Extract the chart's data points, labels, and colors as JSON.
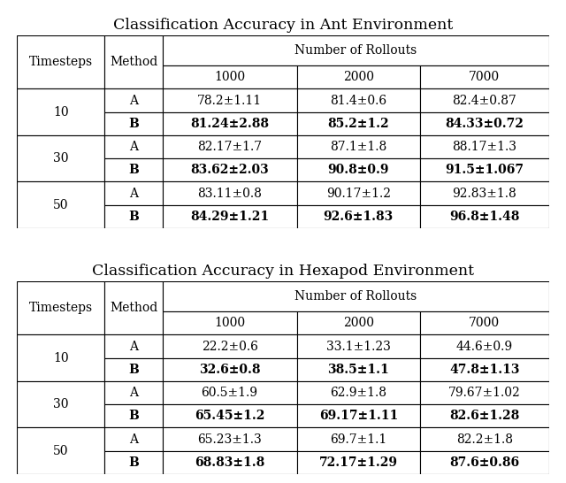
{
  "ant_title": "Classification Accuracy in Ant Environment",
  "hex_title": "Classification Accuracy in Hexapod Environment",
  "col_headers": [
    "1000",
    "2000",
    "7000"
  ],
  "ant_data": [
    [
      "10",
      "A",
      "78.2±1.11",
      "81.4±0.6",
      "82.4±0.87"
    ],
    [
      "10",
      "B",
      "81.24±2.88",
      "85.2±1.2",
      "84.33±0.72"
    ],
    [
      "30",
      "A",
      "82.17±1.7",
      "87.1±1.8",
      "88.17±1.3"
    ],
    [
      "30",
      "B",
      "83.62±2.03",
      "90.8±0.9",
      "91.5±1.067"
    ],
    [
      "50",
      "A",
      "83.11±0.8",
      "90.17±1.2",
      "92.83±1.8"
    ],
    [
      "50",
      "B",
      "84.29±1.21",
      "92.6±1.83",
      "96.8±1.48"
    ]
  ],
  "ant_bold_rows": [
    1,
    3,
    5
  ],
  "hex_data": [
    [
      "10",
      "A",
      "22.2±0.6",
      "33.1±1.23",
      "44.6±0.9"
    ],
    [
      "10",
      "B",
      "32.6±0.8",
      "38.5±1.1",
      "47.8±1.13"
    ],
    [
      "30",
      "A",
      "60.5±1.9",
      "62.9±1.8",
      "79.67±1.02"
    ],
    [
      "30",
      "B",
      "65.45±1.2",
      "69.17±1.11",
      "82.6±1.28"
    ],
    [
      "50",
      "A",
      "65.23±1.3",
      "69.7±1.1",
      "82.2±1.8"
    ],
    [
      "50",
      "B",
      "68.83±1.8",
      "72.17±1.29",
      "87.6±0.86"
    ]
  ],
  "hex_bold_rows": [
    1,
    3,
    5
  ],
  "background_color": "#ffffff",
  "cell_fs": 10,
  "title_fs": 12.5
}
